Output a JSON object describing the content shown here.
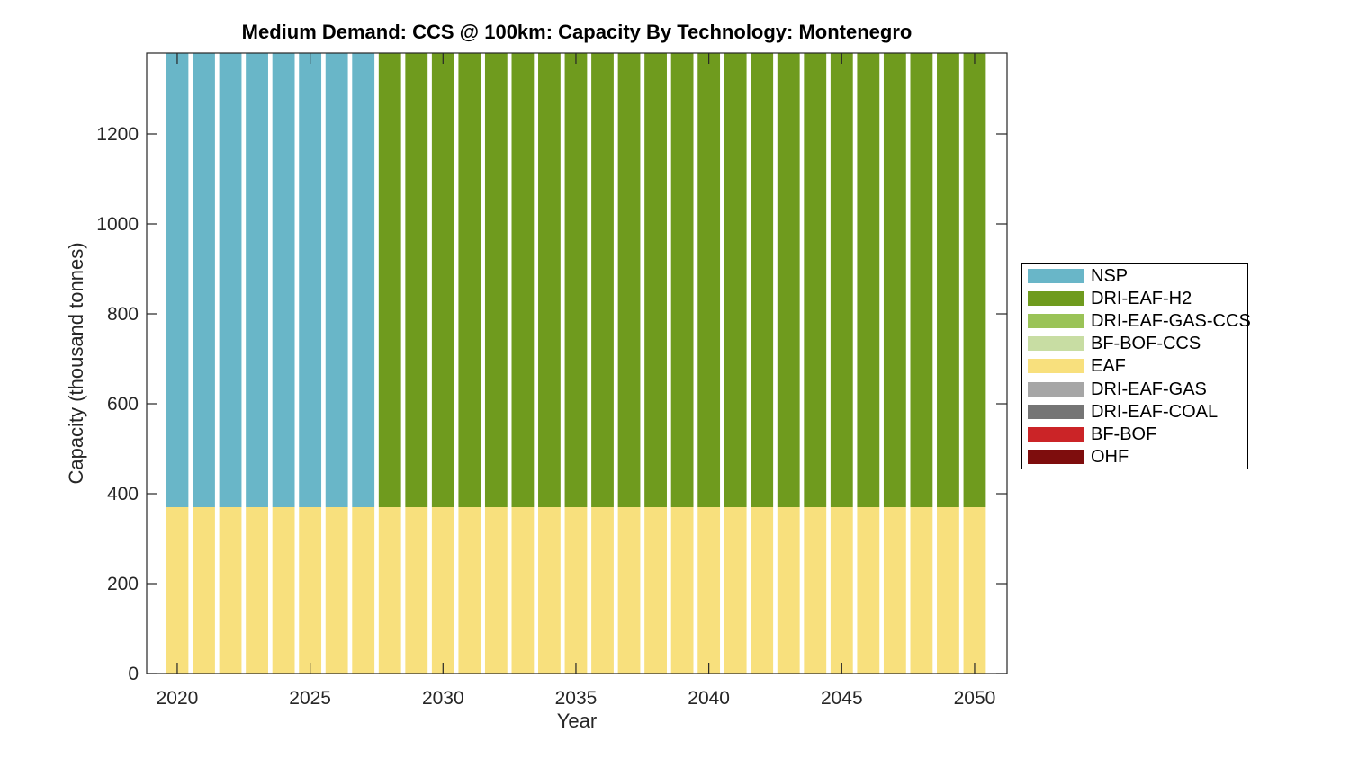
{
  "chart_data": {
    "type": "bar",
    "stacked": true,
    "title": "Medium Demand: CCS @ 100km: Capacity By Technology: Montenegro",
    "xlabel": "Year",
    "ylabel": "Capacity (thousand tonnes)",
    "x": [
      2020,
      2021,
      2022,
      2023,
      2024,
      2025,
      2026,
      2027,
      2028,
      2029,
      2030,
      2031,
      2032,
      2033,
      2034,
      2035,
      2036,
      2037,
      2038,
      2039,
      2040,
      2041,
      2042,
      2043,
      2044,
      2045,
      2046,
      2047,
      2048,
      2049,
      2050
    ],
    "xticks": [
      2020,
      2025,
      2030,
      2035,
      2040,
      2045,
      2050
    ],
    "yticks": [
      0,
      200,
      400,
      600,
      800,
      1000,
      1200
    ],
    "xlim": [
      2018.85,
      2051.22
    ],
    "ylim": [
      0,
      1380
    ],
    "grid": false,
    "bars_clipped_at_top": true,
    "legend_position": "right-outside",
    "stack_order_bottom_to_top": [
      "EAF",
      "OHF",
      "BF-BOF",
      "DRI-EAF-COAL",
      "DRI-EAF-GAS",
      "BF-BOF-CCS",
      "DRI-EAF-GAS-CCS",
      "DRI-EAF-H2",
      "NSP"
    ],
    "series": [
      {
        "name": "NSP",
        "color": "#69b6c8",
        "values": [
          1010,
          1010,
          1010,
          1010,
          1010,
          1010,
          1010,
          1010,
          0,
          0,
          0,
          0,
          0,
          0,
          0,
          0,
          0,
          0,
          0,
          0,
          0,
          0,
          0,
          0,
          0,
          0,
          0,
          0,
          0,
          0,
          0
        ]
      },
      {
        "name": "DRI-EAF-H2",
        "color": "#6f9b1e",
        "values": [
          0,
          0,
          0,
          0,
          0,
          0,
          0,
          0,
          1010,
          1010,
          1010,
          1010,
          1010,
          1010,
          1010,
          1010,
          1010,
          1010,
          1010,
          1010,
          1010,
          1010,
          1010,
          1010,
          1010,
          1010,
          1010,
          1010,
          1010,
          1010,
          1010
        ]
      },
      {
        "name": "DRI-EAF-GAS-CCS",
        "color": "#9ac357",
        "values": [
          0,
          0,
          0,
          0,
          0,
          0,
          0,
          0,
          0,
          0,
          0,
          0,
          0,
          0,
          0,
          0,
          0,
          0,
          0,
          0,
          0,
          0,
          0,
          0,
          0,
          0,
          0,
          0,
          0,
          0,
          0
        ]
      },
      {
        "name": "BF-BOF-CCS",
        "color": "#c8dda3",
        "values": [
          0,
          0,
          0,
          0,
          0,
          0,
          0,
          0,
          0,
          0,
          0,
          0,
          0,
          0,
          0,
          0,
          0,
          0,
          0,
          0,
          0,
          0,
          0,
          0,
          0,
          0,
          0,
          0,
          0,
          0,
          0
        ]
      },
      {
        "name": "EAF",
        "color": "#f8e07d",
        "values": [
          370,
          370,
          370,
          370,
          370,
          370,
          370,
          370,
          370,
          370,
          370,
          370,
          370,
          370,
          370,
          370,
          370,
          370,
          370,
          370,
          370,
          370,
          370,
          370,
          370,
          370,
          370,
          370,
          370,
          370,
          370
        ]
      },
      {
        "name": "DRI-EAF-GAS",
        "color": "#a6a6a6",
        "values": [
          0,
          0,
          0,
          0,
          0,
          0,
          0,
          0,
          0,
          0,
          0,
          0,
          0,
          0,
          0,
          0,
          0,
          0,
          0,
          0,
          0,
          0,
          0,
          0,
          0,
          0,
          0,
          0,
          0,
          0,
          0
        ]
      },
      {
        "name": "DRI-EAF-COAL",
        "color": "#757575",
        "values": [
          0,
          0,
          0,
          0,
          0,
          0,
          0,
          0,
          0,
          0,
          0,
          0,
          0,
          0,
          0,
          0,
          0,
          0,
          0,
          0,
          0,
          0,
          0,
          0,
          0,
          0,
          0,
          0,
          0,
          0,
          0
        ]
      },
      {
        "name": "BF-BOF",
        "color": "#cb2427",
        "values": [
          0,
          0,
          0,
          0,
          0,
          0,
          0,
          0,
          0,
          0,
          0,
          0,
          0,
          0,
          0,
          0,
          0,
          0,
          0,
          0,
          0,
          0,
          0,
          0,
          0,
          0,
          0,
          0,
          0,
          0,
          0
        ]
      },
      {
        "name": "OHF",
        "color": "#7e0d0d",
        "values": [
          0,
          0,
          0,
          0,
          0,
          0,
          0,
          0,
          0,
          0,
          0,
          0,
          0,
          0,
          0,
          0,
          0,
          0,
          0,
          0,
          0,
          0,
          0,
          0,
          0,
          0,
          0,
          0,
          0,
          0,
          0
        ]
      }
    ]
  },
  "style": {
    "axis_color": "#262626",
    "title_color": "#000000",
    "background": "#ffffff"
  }
}
